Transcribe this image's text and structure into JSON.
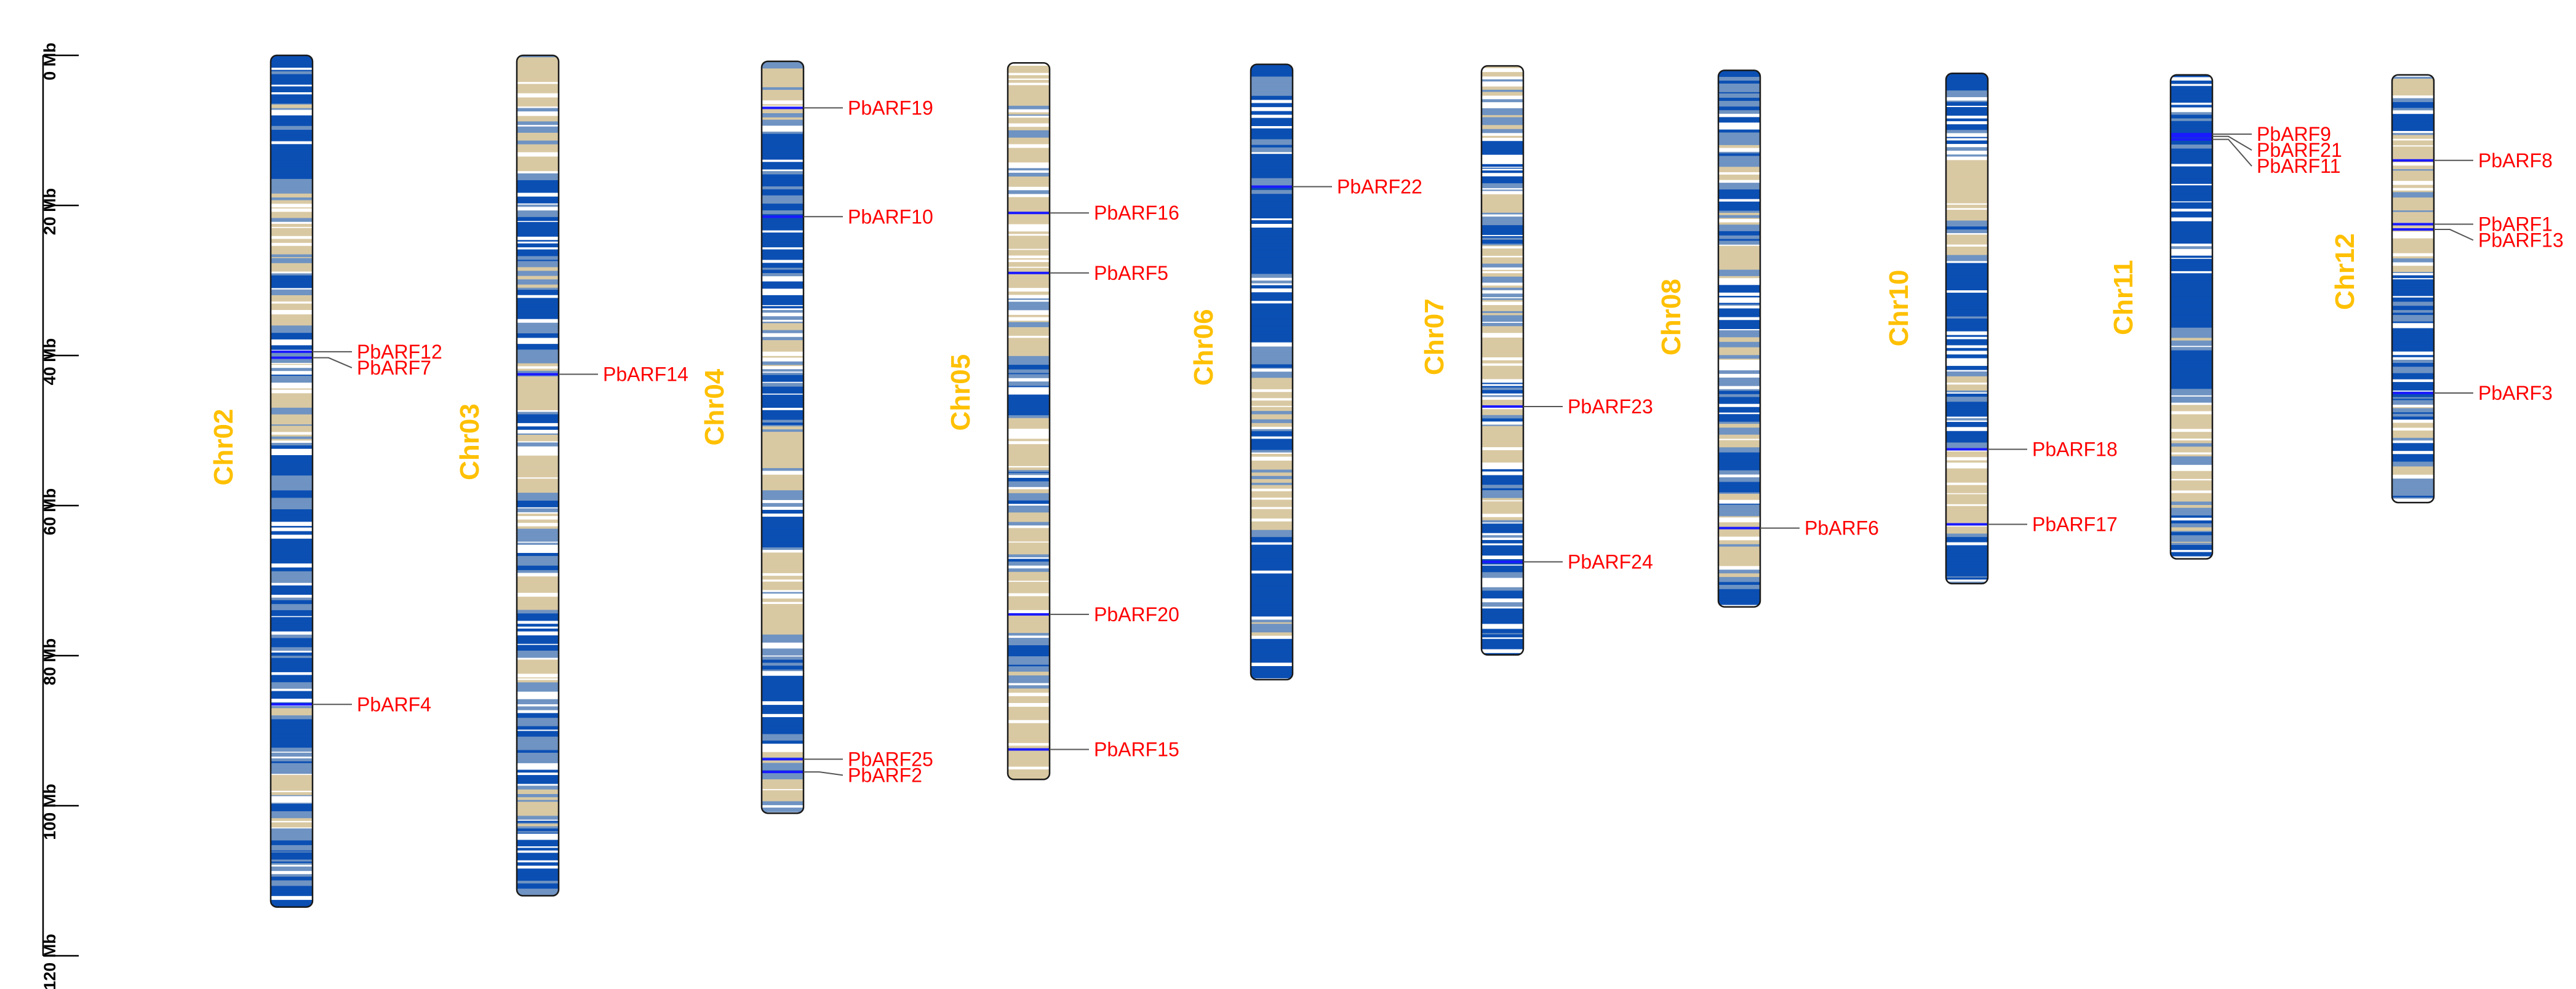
{
  "colors": {
    "background": "#ffffff",
    "chromosome_label": "#FFC000",
    "gene_label": "#FF0000",
    "gene_marker": "#1a1aff",
    "outline": "#1a1a1a",
    "density_high": "#0b4fb3",
    "density_mid": "#6f93c2",
    "density_low": "#d9c9a3",
    "density_empty": "#ffffff"
  },
  "axis": {
    "unit": "Mb",
    "ticks": [
      {
        "value": 0,
        "label": "0 Mb"
      },
      {
        "value": 20,
        "label": "20 Mb"
      },
      {
        "value": 40,
        "label": "40 Mb"
      },
      {
        "value": 60,
        "label": "60 Mb"
      },
      {
        "value": 80,
        "label": "80 Mb"
      },
      {
        "value": 100,
        "label": "100 Mb"
      },
      {
        "value": 120,
        "label": "120 Mb"
      }
    ],
    "max": 120
  },
  "chromosomes": [
    {
      "name": "Chr02",
      "start_mb": 0,
      "length_mb": 113.5,
      "genes": [
        {
          "name": "PbARF12",
          "pos_mb": 39.5
        },
        {
          "name": "PbARF7",
          "pos_mb": 40.3
        },
        {
          "name": "PbARF4",
          "pos_mb": 86.5
        }
      ]
    },
    {
      "name": "Chr03",
      "start_mb": 0,
      "length_mb": 112.0,
      "genes": [
        {
          "name": "PbARF14",
          "pos_mb": 42.5
        }
      ]
    },
    {
      "name": "Chr04",
      "start_mb": 0.8,
      "length_mb": 100.2,
      "genes": [
        {
          "name": "PbARF19",
          "pos_mb": 7.0
        },
        {
          "name": "PbARF10",
          "pos_mb": 21.5
        },
        {
          "name": "PbARF25",
          "pos_mb": 93.8
        },
        {
          "name": "PbARF2",
          "pos_mb": 95.5
        }
      ]
    },
    {
      "name": "Chr05",
      "start_mb": 1.0,
      "length_mb": 95.5,
      "genes": [
        {
          "name": "PbARF16",
          "pos_mb": 21.0
        },
        {
          "name": "PbARF5",
          "pos_mb": 29.0
        },
        {
          "name": "PbARF20",
          "pos_mb": 74.5
        },
        {
          "name": "PbARF15",
          "pos_mb": 92.5
        }
      ]
    },
    {
      "name": "Chr06",
      "start_mb": 1.2,
      "length_mb": 82.0,
      "genes": [
        {
          "name": "PbARF22",
          "pos_mb": 17.5
        }
      ]
    },
    {
      "name": "Chr07",
      "start_mb": 1.4,
      "length_mb": 78.5,
      "genes": [
        {
          "name": "PbARF23",
          "pos_mb": 46.8
        },
        {
          "name": "PbARF24",
          "pos_mb": 67.5
        }
      ]
    },
    {
      "name": "Chr08",
      "start_mb": 2.0,
      "length_mb": 71.5,
      "genes": [
        {
          "name": "PbARF6",
          "pos_mb": 63.0
        }
      ]
    },
    {
      "name": "Chr10",
      "start_mb": 2.4,
      "length_mb": 68.0,
      "genes": [
        {
          "name": "PbARF18",
          "pos_mb": 52.5
        },
        {
          "name": "PbARF17",
          "pos_mb": 62.5
        }
      ]
    },
    {
      "name": "Chr11",
      "start_mb": 2.6,
      "length_mb": 64.5,
      "genes": [
        {
          "name": "PbARF9",
          "pos_mb": 10.5
        },
        {
          "name": "PbARF21",
          "pos_mb": 10.8
        },
        {
          "name": "PbARF11",
          "pos_mb": 11.2
        }
      ]
    },
    {
      "name": "Chr12",
      "start_mb": 2.6,
      "length_mb": 57.0,
      "genes": [
        {
          "name": "PbARF8",
          "pos_mb": 14.0
        },
        {
          "name": "PbARF1",
          "pos_mb": 22.5
        },
        {
          "name": "PbARF13",
          "pos_mb": 23.2
        },
        {
          "name": "PbARF3",
          "pos_mb": 45.0
        }
      ]
    }
  ]
}
